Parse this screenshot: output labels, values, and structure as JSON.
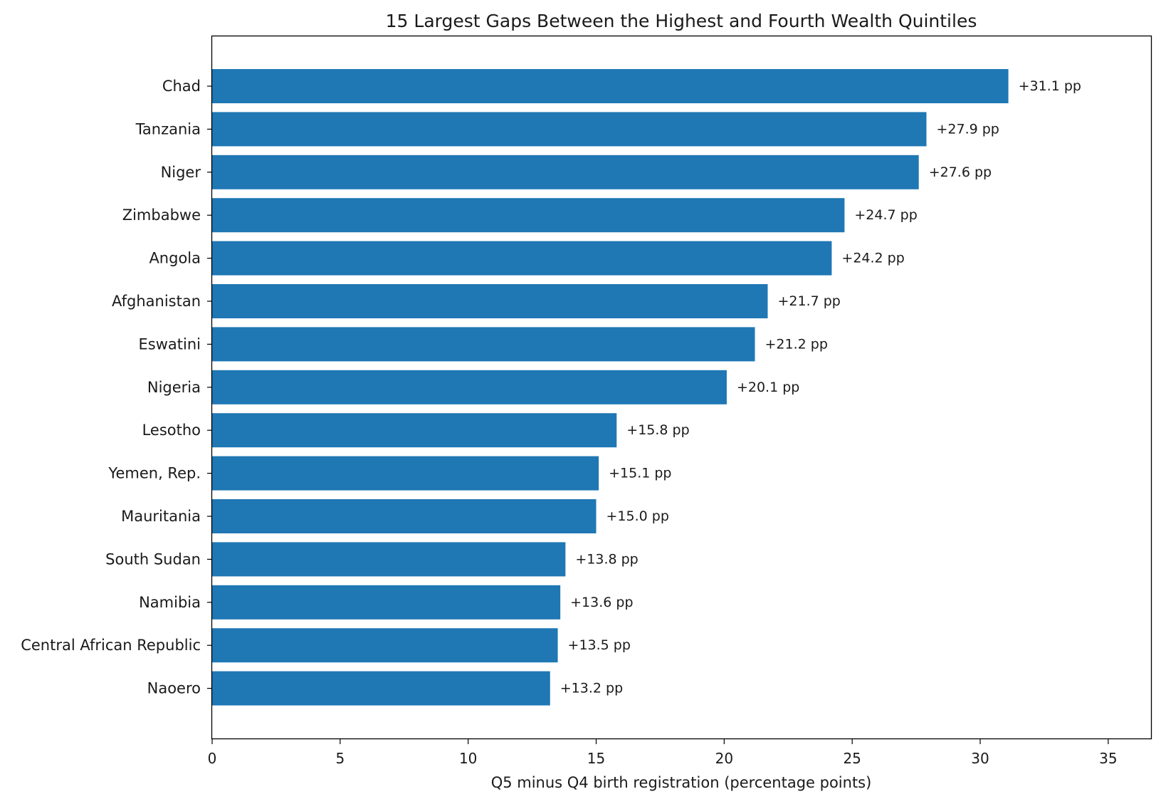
{
  "chart_data": {
    "type": "bar",
    "orientation": "horizontal",
    "title": "15 Largest Gaps Between the Highest and Fourth Wealth Quintiles",
    "xlabel": "Q5 minus Q4 birth registration (percentage points)",
    "ylabel": "",
    "xlim": [
      0,
      36.7
    ],
    "xticks": [
      0,
      5,
      10,
      15,
      20,
      25,
      30,
      35
    ],
    "grid": false,
    "legend": "none",
    "bar_color": "#1f77b4",
    "categories": [
      "Chad",
      "Tanzania",
      "Niger",
      "Zimbabwe",
      "Angola",
      "Afghanistan",
      "Eswatini",
      "Nigeria",
      "Lesotho",
      "Yemen, Rep.",
      "Mauritania",
      "South Sudan",
      "Namibia",
      "Central African Republic",
      "Naoero"
    ],
    "values": [
      31.1,
      27.9,
      27.6,
      24.7,
      24.2,
      21.7,
      21.2,
      20.1,
      15.8,
      15.1,
      15.0,
      13.8,
      13.6,
      13.5,
      13.2
    ],
    "data_labels": [
      "+31.1 pp",
      "+27.9 pp",
      "+27.6 pp",
      "+24.7 pp",
      "+24.2 pp",
      "+21.7 pp",
      "+21.2 pp",
      "+20.1 pp",
      "+15.8 pp",
      "+15.1 pp",
      "+15.0 pp",
      "+13.8 pp",
      "+13.6 pp",
      "+13.5 pp",
      "+13.2 pp"
    ]
  }
}
